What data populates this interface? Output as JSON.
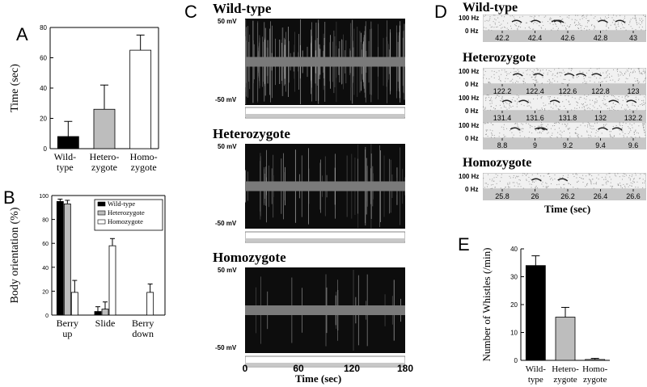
{
  "panels": {
    "A": "A",
    "B": "B",
    "C": "C",
    "D": "D",
    "E": "E"
  },
  "colors": {
    "wild": "#000000",
    "hetero": "#bdbdbd",
    "homo": "#ffffff",
    "trace_bg": "#0d0d0d",
    "trace_band": "#7a7a7a",
    "strip": "#c8c8c8",
    "spec_bg": "#f1f1f1"
  },
  "chart_data": [
    {
      "id": "A",
      "type": "bar",
      "ylabel": "Time (sec)",
      "ylim": [
        0,
        80
      ],
      "yticks": [
        "0",
        "20",
        "40",
        "60",
        "80"
      ],
      "categories": [
        [
          "Wild-",
          "type"
        ],
        [
          "Hetero-",
          "zygote"
        ],
        [
          "Homo-",
          "zygote"
        ]
      ],
      "values": [
        8,
        26,
        65
      ],
      "errors": [
        10,
        16,
        10
      ]
    },
    {
      "id": "B",
      "type": "bar",
      "ylabel": "Body orientation (%)",
      "ylim": [
        0,
        100
      ],
      "yticks": [
        "0",
        "20",
        "40",
        "60",
        "80",
        "100"
      ],
      "categories": [
        [
          "Berry",
          "up"
        ],
        [
          "Slide",
          ""
        ],
        [
          "Berry",
          "down"
        ]
      ],
      "series": [
        {
          "name": "Wild-type",
          "values": [
            95,
            3,
            0
          ],
          "errors": [
            2,
            4,
            0
          ]
        },
        {
          "name": "Heterozygote",
          "values": [
            93,
            5,
            0
          ],
          "errors": [
            3,
            6,
            0
          ]
        },
        {
          "name": "Homozygote",
          "values": [
            19,
            58,
            19
          ],
          "errors": [
            10,
            6,
            7
          ]
        }
      ],
      "legend": "top-right"
    },
    {
      "id": "E",
      "type": "bar",
      "ylabel": "Number of Whistles (/min)",
      "ylim": [
        0,
        40
      ],
      "yticks": [
        "0",
        "10",
        "20",
        "30",
        "40"
      ],
      "categories": [
        [
          "Wild-",
          "type"
        ],
        [
          "Hetero-",
          "zygote"
        ],
        [
          "Homo-",
          "zygote"
        ]
      ],
      "values": [
        34,
        15.5,
        0.3
      ],
      "errors": [
        3.5,
        3.5,
        0.4
      ]
    }
  ],
  "traces": {
    "rows": [
      {
        "title": "Wild-type",
        "density": "high"
      },
      {
        "title": "Heterozygote",
        "density": "medium"
      },
      {
        "title": "Homozygote",
        "density": "low"
      }
    ],
    "ytop": "50 mV",
    "ybottom": "-50 mV",
    "xticks": [
      "0",
      "60",
      "120",
      "180"
    ],
    "xlabel": "Time (sec)"
  },
  "spectrograms": {
    "ytop": "100 Hz",
    "ybottom": "0 Hz",
    "groups": [
      {
        "title": "Wild-type",
        "rows": [
          {
            "ticks": [
              "42.2",
              "42.4",
              "42.6",
              "42.8",
              "43"
            ],
            "show_y": true
          }
        ]
      },
      {
        "title": "Heterozygote",
        "rows": [
          {
            "ticks": [
              "122.2",
              "122.4",
              "122.6",
              "122.8",
              "123"
            ],
            "show_y": true
          },
          {
            "ticks": [
              "131.4",
              "131.6",
              "131.8",
              "132",
              "132.2"
            ],
            "show_y": true
          },
          {
            "ticks": [
              "8.8",
              "9",
              "9.2",
              "9.4",
              "9.6"
            ],
            "show_y": true
          }
        ]
      },
      {
        "title": "Homozygote",
        "rows": [
          {
            "ticks": [
              "25.8",
              "26",
              "26.2",
              "26.4",
              "26.6"
            ],
            "show_y": true
          }
        ]
      }
    ],
    "xlabel": "Time (sec)"
  }
}
